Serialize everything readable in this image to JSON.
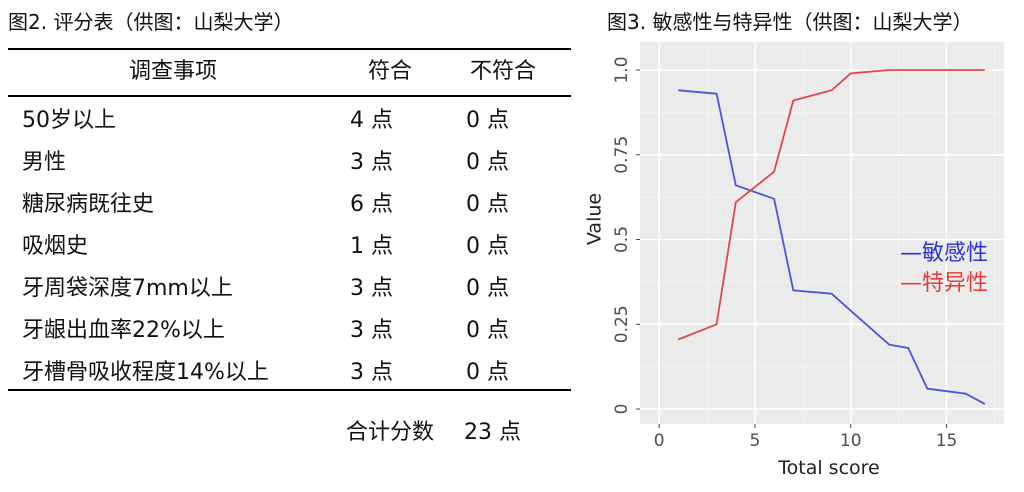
{
  "figure2": {
    "title": "图2. 评分表（供图：山梨大学）",
    "headers": {
      "item": "调查事项",
      "yes": "符合",
      "no": "不符合"
    },
    "rows": [
      {
        "item": "50岁以上",
        "yes": "4 点",
        "no": "0 点"
      },
      {
        "item": "男性",
        "yes": "3 点",
        "no": "0 点"
      },
      {
        "item": "糖尿病既往史",
        "yes": "6 点",
        "no": "0 点"
      },
      {
        "item": "吸烟史",
        "yes": "1 点",
        "no": "0 点"
      },
      {
        "item": "牙周袋深度7mm以上",
        "yes": "3 点",
        "no": "0 点"
      },
      {
        "item": "牙龈出血率22%以上",
        "yes": "3 点",
        "no": "0 点"
      },
      {
        "item": "牙槽骨吸收程度14%以上",
        "yes": "3 点",
        "no": "0 点"
      }
    ],
    "total_label": "合计分数",
    "total_value": "23 点"
  },
  "chart_data": {
    "type": "line",
    "title": "图3. 敏感性与特异性（供图：山梨大学）",
    "xlabel": "Total score",
    "ylabel": "Value",
    "xlim": [
      -1,
      18
    ],
    "ylim": [
      0,
      1
    ],
    "x_ticks": [
      "0",
      "5",
      "10",
      "15"
    ],
    "y_ticks": [
      "0",
      "0.25",
      "0.5",
      "0.75",
      "1.0"
    ],
    "grid": true,
    "background": "#ebebeb",
    "legend_position": "right",
    "series": [
      {
        "name": "—敏感性",
        "color": "#4a55e0",
        "x": [
          1,
          3,
          4,
          6,
          7,
          9,
          10,
          12,
          13,
          14,
          16,
          17
        ],
        "y": [
          0.94,
          0.93,
          0.66,
          0.62,
          0.35,
          0.34,
          0.29,
          0.19,
          0.18,
          0.06,
          0.045,
          0.015
        ]
      },
      {
        "name": "—特异性",
        "color": "#e04848",
        "x": [
          1,
          3,
          4,
          6,
          7,
          9,
          10,
          12,
          17
        ],
        "y": [
          0.205,
          0.25,
          0.61,
          0.7,
          0.91,
          0.94,
          0.99,
          1.0,
          1.0
        ]
      }
    ]
  }
}
